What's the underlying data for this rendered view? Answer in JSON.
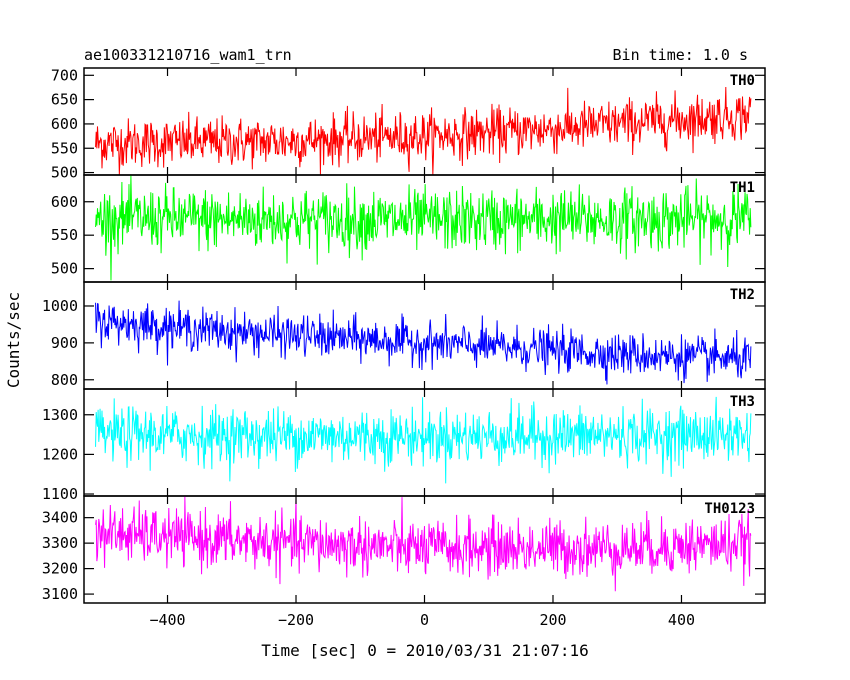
{
  "header": {
    "title": "ae100331210716_wam1_trn",
    "bin_time": "Bin time: 1.0 s"
  },
  "chart_data": {
    "type": "line",
    "xlabel": "Time [sec] 0 = 2010/03/31 21:07:16",
    "ylabel": "Counts/sec",
    "xlim": [
      -530,
      530
    ],
    "x_range": [
      -512,
      508
    ],
    "x_ticks": [
      -400,
      -200,
      0,
      200,
      400
    ],
    "x_tick_labels": [
      "−400",
      "−200",
      "0",
      "200",
      "400"
    ],
    "grid": false,
    "panels": [
      {
        "name": "TH0",
        "color": "#ff0000",
        "ylim": [
          495,
          715
        ],
        "y_ticks": [
          500,
          550,
          600,
          650,
          700
        ],
        "y_tick_labels": [
          "500",
          "550",
          "600",
          "650",
          "700"
        ],
        "trend": [
          [
            -512,
            560
          ],
          [
            -200,
            565
          ],
          [
            0,
            575
          ],
          [
            200,
            590
          ],
          [
            300,
            600
          ],
          [
            508,
            620
          ]
        ],
        "noise_sd": 25
      },
      {
        "name": "TH1",
        "color": "#00ff00",
        "ylim": [
          480,
          640
        ],
        "y_ticks": [
          500,
          550,
          600
        ],
        "y_tick_labels": [
          "500",
          "550",
          "600"
        ],
        "trend": [
          [
            -512,
            575
          ],
          [
            0,
            572
          ],
          [
            508,
            575
          ]
        ],
        "noise_sd": 23
      },
      {
        "name": "TH2",
        "color": "#0000ff",
        "ylim": [
          775,
          1065
        ],
        "y_ticks": [
          800,
          900,
          1000
        ],
        "y_tick_labels": [
          "800",
          "900",
          "1000"
        ],
        "trend": [
          [
            -512,
            960
          ],
          [
            -300,
            930
          ],
          [
            0,
            900
          ],
          [
            300,
            870
          ],
          [
            508,
            855
          ]
        ],
        "noise_sd": 28
      },
      {
        "name": "TH3",
        "color": "#00ffff",
        "ylim": [
          1095,
          1365
        ],
        "y_ticks": [
          1100,
          1200,
          1300
        ],
        "y_tick_labels": [
          "1100",
          "1200",
          "1300"
        ],
        "trend": [
          [
            -512,
            1250
          ],
          [
            0,
            1245
          ],
          [
            508,
            1250
          ]
        ],
        "noise_sd": 35
      },
      {
        "name": "TH0123",
        "color": "#ff00ff",
        "ylim": [
          3065,
          3485
        ],
        "y_ticks": [
          3100,
          3200,
          3300,
          3400
        ],
        "y_tick_labels": [
          "3100",
          "3200",
          "3300",
          "3400"
        ],
        "trend": [
          [
            -512,
            3340
          ],
          [
            -300,
            3310
          ],
          [
            0,
            3280
          ],
          [
            300,
            3280
          ],
          [
            508,
            3300
          ]
        ],
        "noise_sd": 55
      }
    ]
  }
}
